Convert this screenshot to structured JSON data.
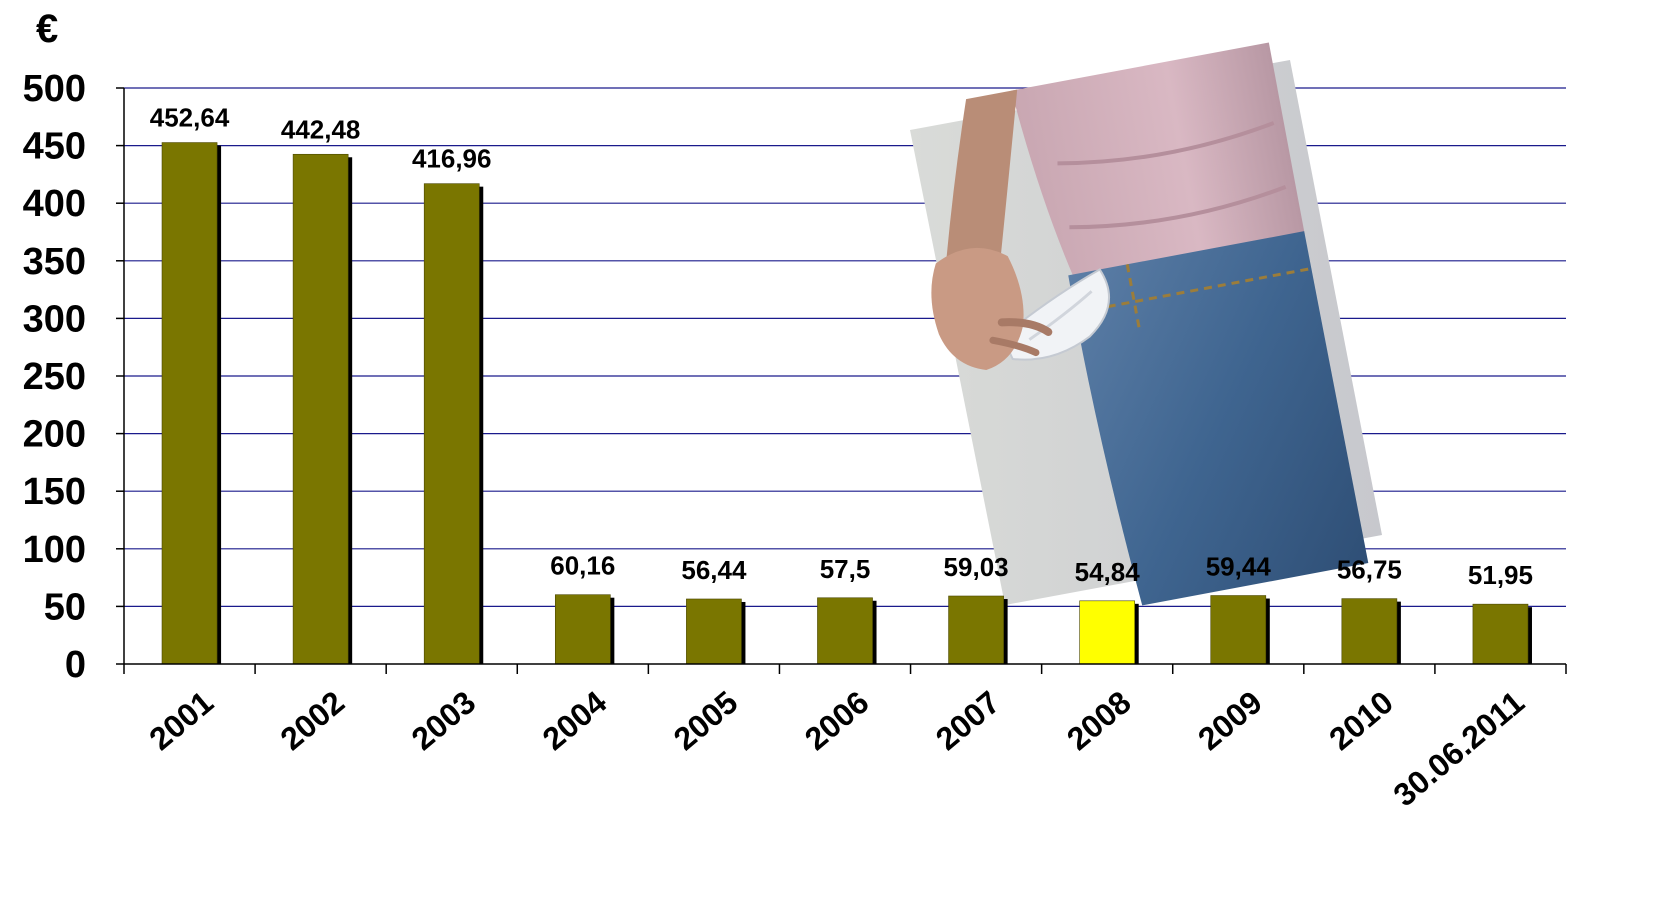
{
  "chart_data": {
    "type": "bar",
    "unit_label": "€",
    "categories": [
      "2001",
      "2002",
      "2003",
      "2004",
      "2005",
      "2006",
      "2007",
      "2008",
      "2009",
      "2010",
      "30.06.2011"
    ],
    "values": [
      452.64,
      442.48,
      416.96,
      60.16,
      56.44,
      57.5,
      59.03,
      54.84,
      59.44,
      56.75,
      51.95
    ],
    "value_labels": [
      "452,64",
      "442,48",
      "416,96",
      "60,16",
      "56,44",
      "57,5",
      "59,03",
      "54,84",
      "59,44",
      "56,75",
      "51,95"
    ],
    "highlight_index": 7,
    "ylim": [
      0,
      500
    ],
    "yticks": [
      "0",
      "50",
      "100",
      "150",
      "200",
      "250",
      "300",
      "350",
      "400",
      "450",
      "500"
    ],
    "grid": true,
    "legend": "none",
    "colors": {
      "bar": "#7a7600",
      "highlight": "#ffff00",
      "shadow": "#000000",
      "grid": "#1a1a8c",
      "axis": "#000000"
    }
  },
  "photo": {
    "subject": "person-pulling-out-empty-trouser-pocket"
  }
}
